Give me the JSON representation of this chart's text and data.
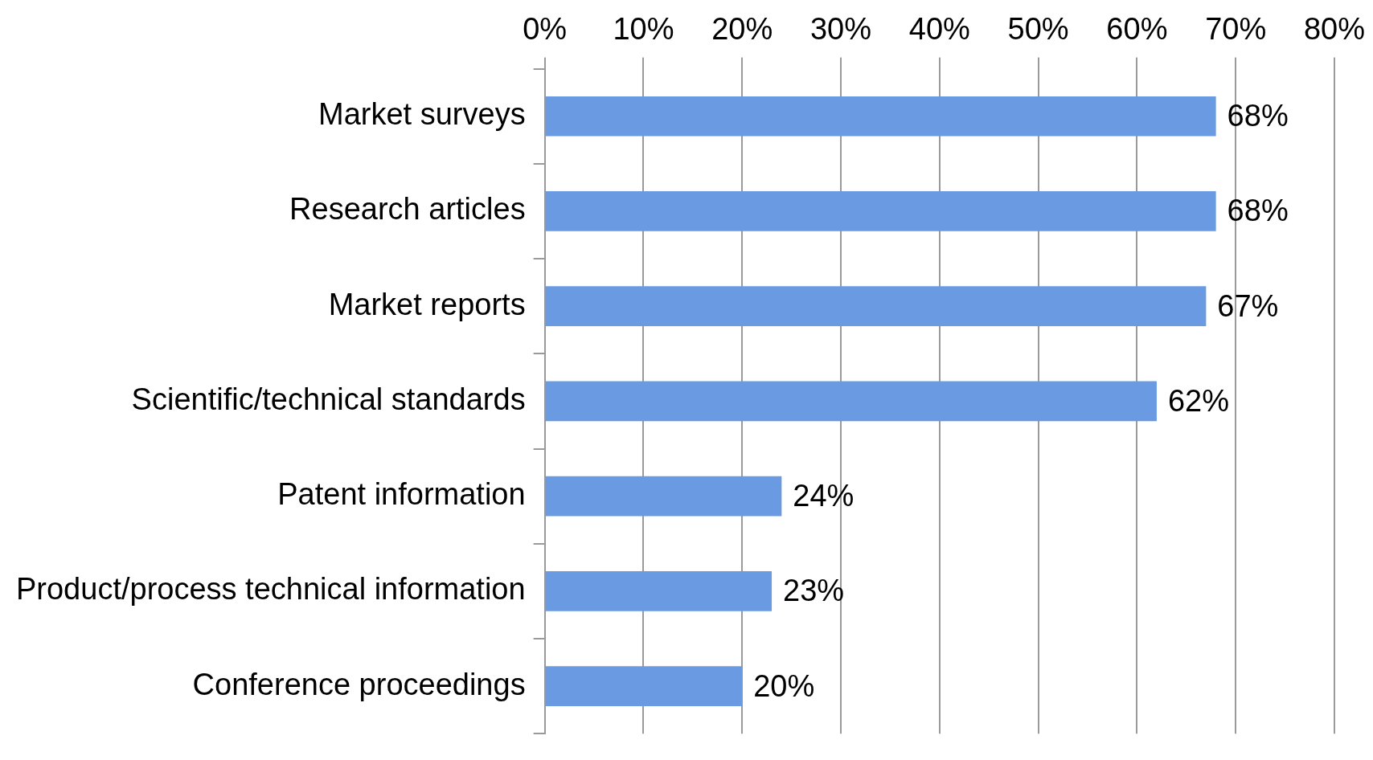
{
  "chart_data": {
    "type": "bar",
    "orientation": "horizontal",
    "categories": [
      "Market surveys",
      "Research articles",
      "Market reports",
      "Scientific/technical standards",
      "Patent information",
      "Product/process technical information",
      "Conference proceedings"
    ],
    "values": [
      68,
      68,
      67,
      62,
      24,
      23,
      20
    ],
    "value_labels": [
      "68%",
      "68%",
      "67%",
      "62%",
      "24%",
      "23%",
      "20%"
    ],
    "color": "#6a9be2",
    "xlim": [
      0,
      80
    ],
    "xticks": [
      {
        "value": 0,
        "label": "0%"
      },
      {
        "value": 10,
        "label": "10%"
      },
      {
        "value": 20,
        "label": "20%"
      },
      {
        "value": 30,
        "label": "30%"
      },
      {
        "value": 40,
        "label": "40%"
      },
      {
        "value": 50,
        "label": "50%"
      },
      {
        "value": 60,
        "label": "60%"
      },
      {
        "value": 70,
        "label": "70%"
      },
      {
        "value": 80,
        "label": "80%"
      }
    ],
    "grid": "x",
    "legend": false
  }
}
